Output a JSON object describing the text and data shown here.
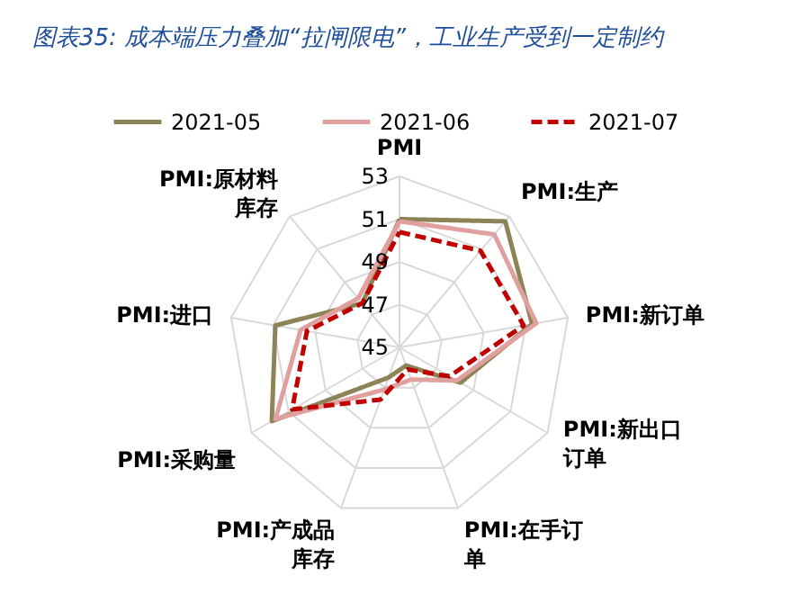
{
  "chart_data": {
    "type": "radar",
    "title": "图表35: 成本端压力叠加“拉闸限电”，工业生产受到一定制约",
    "categories": [
      "PMI",
      "PMI:生产",
      "PMI:新订单",
      "PMI:新出口订单",
      "PMI:在手订单",
      "PMI:产成品库存",
      "PMI:采购量",
      "PMI:进口",
      "PMI:原材料库存"
    ],
    "series": [
      {
        "name": "2021-05",
        "color": "#8c8456",
        "line_style": "solid",
        "values": [
          51.0,
          52.7,
          51.3,
          48.3,
          45.9,
          46.5,
          51.9,
          50.9,
          47.7
        ]
      },
      {
        "name": "2021-06",
        "color": "#e0a0a0",
        "line_style": "solid",
        "values": [
          50.9,
          51.9,
          51.5,
          48.1,
          46.6,
          47.1,
          51.7,
          49.7,
          48.0
        ]
      },
      {
        "name": "2021-07",
        "color": "#c00000",
        "line_style": "dashed",
        "values": [
          50.4,
          50.9,
          50.9,
          47.7,
          46.1,
          47.6,
          50.8,
          49.4,
          47.7
        ]
      }
    ],
    "ylim": [
      45,
      53
    ],
    "yticks": [
      45,
      47,
      49,
      51,
      53
    ],
    "grid": true,
    "legend": "top"
  }
}
